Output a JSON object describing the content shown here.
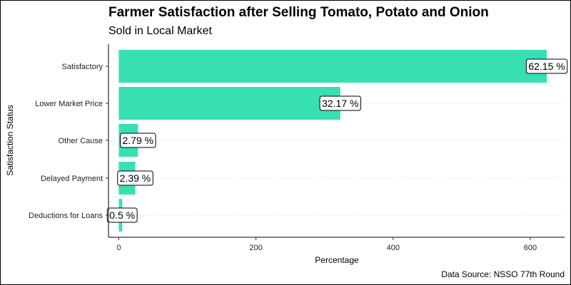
{
  "chart_data": {
    "type": "bar",
    "orientation": "horizontal",
    "title": "Farmer Satisfaction after Selling Tomato, Potato and Onion",
    "subtitle": "Sold in Local Market",
    "caption": "Data Source: NSSO 77th Round",
    "xlabel": "Percentage",
    "ylabel": "Satisfaction Status",
    "categories": [
      "Satisfactory",
      "Lower Market Price",
      "Other Cause",
      "Delayed Payment",
      "Deductions for Loans"
    ],
    "values": [
      624,
      323,
      28,
      24,
      5
    ],
    "data_labels": [
      "62.15 %",
      "32.17 %",
      "2.79 %",
      "2.39 %",
      "0.5 %"
    ],
    "x_ticks": [
      "0",
      "200",
      "400",
      "600"
    ],
    "x_tick_values": [
      0,
      200,
      400,
      600
    ],
    "xlim": [
      -15,
      650
    ],
    "grid": "dotted horizontal",
    "bar_color": "#36E0B3"
  }
}
